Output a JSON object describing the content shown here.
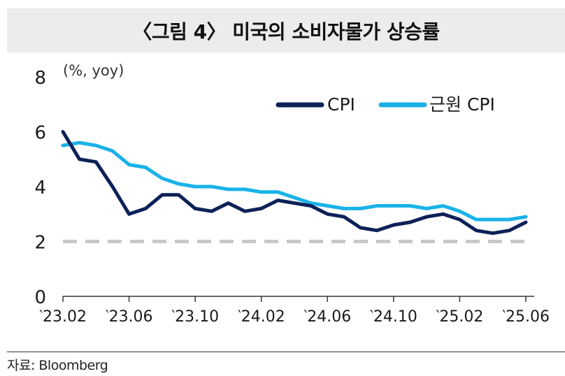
{
  "title": "〈그림 4〉 미국의 소비자물가 상승률",
  "source": "자료: Bloomberg",
  "colors": {
    "cpi": "#0d2158",
    "core_cpi": "#19b2e8",
    "reference": "#c8c8c8"
  },
  "chart_data": {
    "type": "line",
    "unit_label": "(%, yoy)",
    "ylim": [
      0,
      8
    ],
    "yticks": [
      0,
      2,
      4,
      6,
      8
    ],
    "x": [
      "23.02",
      "23.03",
      "23.04",
      "23.05",
      "23.06",
      "23.07",
      "23.08",
      "23.09",
      "23.10",
      "23.11",
      "23.12",
      "24.01",
      "24.02",
      "24.03",
      "24.04",
      "24.05",
      "24.06",
      "24.07",
      "24.08",
      "24.09",
      "24.10",
      "24.11",
      "24.12",
      "25.01",
      "25.02",
      "25.03",
      "25.04",
      "25.05",
      "25.06"
    ],
    "x_tick_labels": [
      "‵23.02",
      "‵23.06",
      "‵23.10",
      "‵24.02",
      "‵24.06",
      "‵24.10",
      "‵25.02",
      "‵25.06"
    ],
    "legend_position": "top-right",
    "grid": false,
    "reference_line": {
      "y": 2,
      "style": "dashed"
    },
    "series": [
      {
        "name": "CPI",
        "values": [
          6.0,
          5.0,
          4.9,
          4.0,
          3.0,
          3.2,
          3.7,
          3.7,
          3.2,
          3.1,
          3.4,
          3.1,
          3.2,
          3.5,
          3.4,
          3.3,
          3.0,
          2.9,
          2.5,
          2.4,
          2.6,
          2.7,
          2.9,
          3.0,
          2.8,
          2.4,
          2.3,
          2.4,
          2.7
        ]
      },
      {
        "name": "근원 CPI",
        "values": [
          5.5,
          5.6,
          5.5,
          5.3,
          4.8,
          4.7,
          4.3,
          4.1,
          4.0,
          4.0,
          3.9,
          3.9,
          3.8,
          3.8,
          3.6,
          3.4,
          3.3,
          3.2,
          3.2,
          3.3,
          3.3,
          3.3,
          3.2,
          3.3,
          3.1,
          2.8,
          2.8,
          2.8,
          2.9
        ]
      }
    ]
  }
}
